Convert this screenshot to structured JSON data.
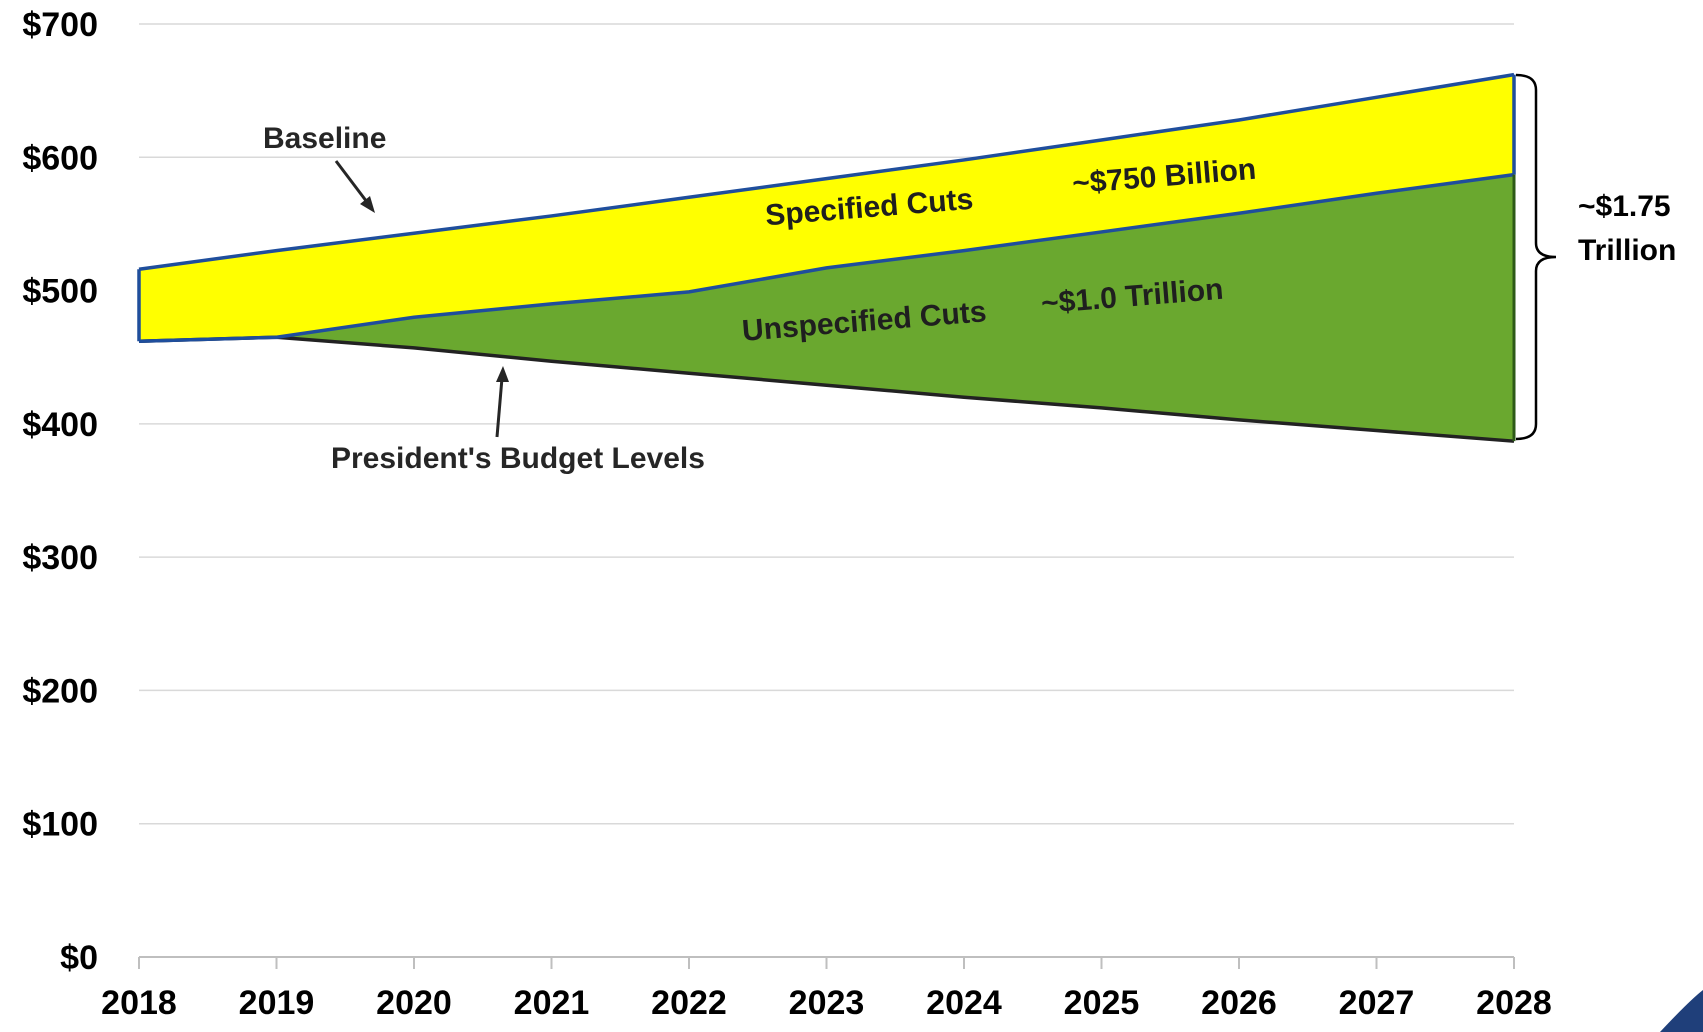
{
  "chart_data": {
    "type": "area",
    "x": [
      2018,
      2019,
      2020,
      2021,
      2022,
      2023,
      2024,
      2025,
      2026,
      2027,
      2028
    ],
    "xtick_labels": [
      "2018",
      "2019",
      "2020",
      "2021",
      "2022",
      "2023",
      "2024",
      "2025",
      "2026",
      "2027",
      "2028"
    ],
    "ylim": [
      0,
      700
    ],
    "ytick_values": [
      0,
      100,
      200,
      300,
      400,
      500,
      600,
      700
    ],
    "ytick_labels": [
      "$0",
      "$100",
      "$200",
      "$300",
      "$400",
      "$500",
      "$600",
      "$700"
    ],
    "grid": true,
    "series": [
      {
        "name": "Baseline",
        "values": [
          516,
          530,
          543,
          556,
          570,
          584,
          598,
          613,
          628,
          645,
          662
        ]
      },
      {
        "values": [
          462,
          465,
          480,
          490,
          499,
          517,
          530,
          544,
          558,
          573,
          587
        ]
      },
      {
        "name": "President's Budget Levels",
        "values": [
          462,
          465,
          457,
          447,
          438,
          429,
          420,
          412,
          403,
          395,
          387
        ]
      }
    ],
    "colors": {
      "specified_fill": "#ffff00",
      "unspecified_fill": "#6aa82f",
      "baseline_line": "#1f4e9c",
      "budget_line": "#222222"
    },
    "annotations": {
      "baseline": "Baseline",
      "budget": "President's Budget Levels",
      "specified_label": "Specified Cuts",
      "specified_amount": "~$750 Billion",
      "unspecified_label": "Unspecified Cuts",
      "unspecified_amount": "~$1.0 Trillion",
      "total_line1": "~$1.75",
      "total_line2": "Trillion"
    }
  }
}
